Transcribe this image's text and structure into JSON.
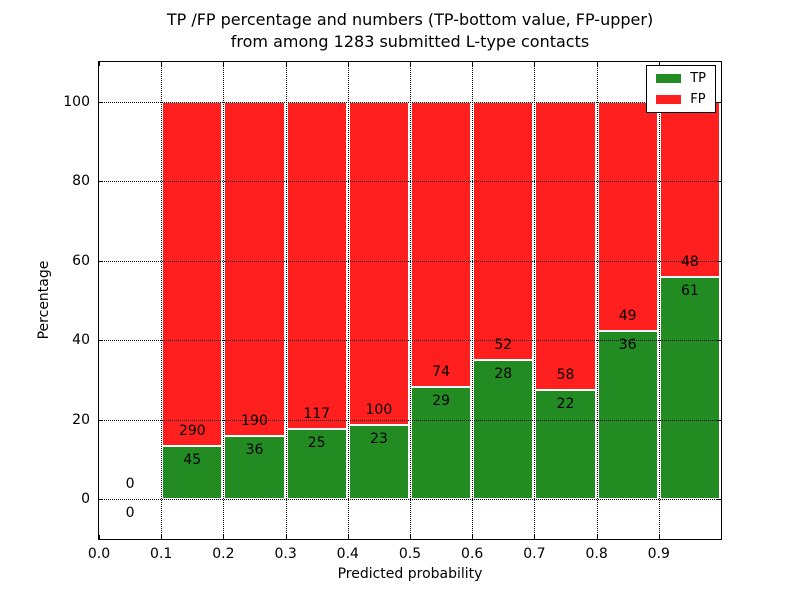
{
  "title": {
    "line1": "TP /FP percentage and numbers (TP-bottom value, FP-upper)",
    "line2": "from among 1283 submitted L-type contacts"
  },
  "chart_data": {
    "type": "bar",
    "stacked": true,
    "normalized": "each bar scaled to 100%",
    "title": "TP /FP percentage and numbers (TP-bottom value, FP-upper)\nfrom among 1283 submitted L-type contacts",
    "xlabel": "Predicted probability",
    "ylabel": "Percentage",
    "xlim": [
      0.0,
      1.0
    ],
    "ylim": [
      -10,
      110
    ],
    "grid": true,
    "grid_x": [
      0.1,
      0.2,
      0.3,
      0.4,
      0.5,
      0.6,
      0.7,
      0.8,
      0.9
    ],
    "grid_y": [
      0,
      20,
      40,
      60,
      80,
      100
    ],
    "x_ticks": [
      {
        "value": 0.0,
        "label": "0.0"
      },
      {
        "value": 0.1,
        "label": "0.1"
      },
      {
        "value": 0.2,
        "label": "0.2"
      },
      {
        "value": 0.3,
        "label": "0.3"
      },
      {
        "value": 0.4,
        "label": "0.4"
      },
      {
        "value": 0.5,
        "label": "0.5"
      },
      {
        "value": 0.6,
        "label": "0.6"
      },
      {
        "value": 0.7,
        "label": "0.7"
      },
      {
        "value": 0.8,
        "label": "0.8"
      },
      {
        "value": 0.9,
        "label": "0.9"
      }
    ],
    "y_ticks": [
      {
        "value": 0,
        "label": "0"
      },
      {
        "value": 20,
        "label": "20"
      },
      {
        "value": 40,
        "label": "40"
      },
      {
        "value": 60,
        "label": "60"
      },
      {
        "value": 80,
        "label": "80"
      },
      {
        "value": 100,
        "label": "100"
      }
    ],
    "bins": [
      {
        "range": [
          0.0,
          0.1
        ],
        "tp": 0,
        "fp": 0
      },
      {
        "range": [
          0.1,
          0.2
        ],
        "tp": 45,
        "fp": 290
      },
      {
        "range": [
          0.2,
          0.3
        ],
        "tp": 36,
        "fp": 190
      },
      {
        "range": [
          0.3,
          0.4
        ],
        "tp": 25,
        "fp": 117
      },
      {
        "range": [
          0.4,
          0.5
        ],
        "tp": 23,
        "fp": 100
      },
      {
        "range": [
          0.5,
          0.6
        ],
        "tp": 29,
        "fp": 74
      },
      {
        "range": [
          0.6,
          0.7
        ],
        "tp": 28,
        "fp": 52
      },
      {
        "range": [
          0.7,
          0.8
        ],
        "tp": 22,
        "fp": 58
      },
      {
        "range": [
          0.8,
          0.9
        ],
        "tp": 36,
        "fp": 49
      },
      {
        "range": [
          0.9,
          1.0
        ],
        "tp": 61,
        "fp": 48
      }
    ],
    "series": [
      {
        "name": "TP",
        "color": "#228B22",
        "values": [
          0,
          45,
          36,
          25,
          23,
          29,
          28,
          22,
          36,
          61
        ]
      },
      {
        "name": "FP",
        "color": "#FF1F1F",
        "values": [
          0,
          290,
          190,
          117,
          100,
          74,
          52,
          58,
          49,
          48
        ]
      }
    ],
    "legend": {
      "position": "upper right",
      "entries": [
        "TP",
        "FP"
      ]
    },
    "total_contacts": 1283
  }
}
